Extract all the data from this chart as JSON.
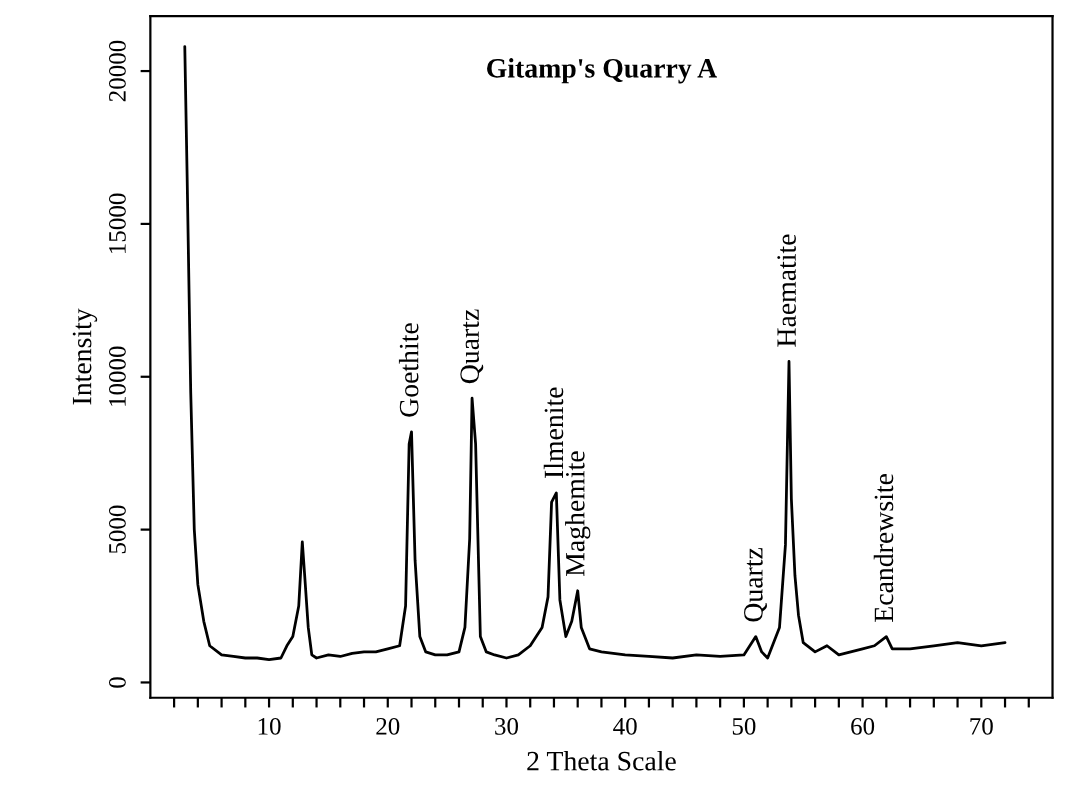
{
  "chart_data": {
    "type": "line",
    "title": "Gitamp's Quarry A",
    "xlabel": "2 Theta Scale",
    "ylabel": "Intensity",
    "x": [
      2.9,
      3.1,
      3.4,
      3.7,
      4.0,
      4.5,
      5.0,
      6,
      7,
      8,
      9,
      10,
      11,
      11.5,
      12,
      12.5,
      12.8,
      13.0,
      13.3,
      13.6,
      14,
      15,
      16,
      17,
      18,
      19,
      20,
      21,
      21.5,
      21.8,
      22.0,
      22.3,
      22.7,
      23.2,
      24,
      25,
      26,
      26.5,
      26.9,
      27.1,
      27.4,
      27.8,
      28.3,
      29,
      30,
      31,
      32,
      33,
      33.5,
      33.8,
      34.2,
      34.5,
      35,
      35.5,
      36,
      36.3,
      37,
      38,
      40,
      42,
      44,
      46,
      48,
      50,
      51,
      51.5,
      52,
      52.5,
      53,
      53.5,
      53.8,
      54.0,
      54.3,
      54.6,
      55,
      56,
      57,
      58,
      59,
      60,
      61,
      62,
      62.5,
      64,
      66,
      68,
      70,
      72
    ],
    "series": [
      {
        "color": "#000000",
        "values": [
          20800,
          16500,
          9500,
          5000,
          3200,
          2000,
          1200,
          900,
          850,
          800,
          800,
          750,
          800,
          1200,
          1500,
          2500,
          4600,
          3500,
          1800,
          900,
          800,
          900,
          850,
          950,
          1000,
          1000,
          1100,
          1200,
          2500,
          7800,
          8200,
          4000,
          1500,
          1000,
          900,
          900,
          1000,
          1800,
          4700,
          9300,
          7800,
          1500,
          1000,
          900,
          800,
          900,
          1200,
          1800,
          2800,
          5900,
          6200,
          2700,
          1500,
          2000,
          3000,
          1800,
          1100,
          1000,
          900,
          850,
          800,
          900,
          850,
          900,
          1500,
          1000,
          800,
          1300,
          1800,
          4500,
          10500,
          6000,
          3500,
          2200,
          1300,
          1000,
          1200,
          900,
          1000,
          1100,
          1200,
          1500,
          1100,
          1100,
          1200,
          1300,
          1200,
          1300
        ]
      }
    ],
    "xlim": [
      0,
      76
    ],
    "ylim": [
      -500,
      21800
    ],
    "xticks": [
      {
        "value": 2,
        "label": null
      },
      {
        "value": 4,
        "label": null
      },
      {
        "value": 6,
        "label": null
      },
      {
        "value": 8,
        "label": null
      },
      10,
      {
        "value": 12,
        "label": null
      },
      {
        "value": 14,
        "label": null
      },
      {
        "value": 16,
        "label": null
      },
      {
        "value": 18,
        "label": null
      },
      20,
      {
        "value": 22,
        "label": null
      },
      {
        "value": 24,
        "label": null
      },
      {
        "value": 26,
        "label": null
      },
      {
        "value": 28,
        "label": null
      },
      30,
      {
        "value": 32,
        "label": null
      },
      {
        "value": 34,
        "label": null
      },
      {
        "value": 36,
        "label": null
      },
      {
        "value": 38,
        "label": null
      },
      40,
      {
        "value": 42,
        "label": null
      },
      {
        "value": 44,
        "label": null
      },
      {
        "value": 46,
        "label": null
      },
      {
        "value": 48,
        "label": null
      },
      50,
      {
        "value": 52,
        "label": null
      },
      {
        "value": 54,
        "label": null
      },
      {
        "value": 56,
        "label": null
      },
      {
        "value": 58,
        "label": null
      },
      60,
      {
        "value": 62,
        "label": null
      },
      {
        "value": 64,
        "label": null
      },
      {
        "value": 66,
        "label": null
      },
      {
        "value": 68,
        "label": null
      },
      70,
      {
        "value": 72,
        "label": null
      },
      {
        "value": 74,
        "label": null
      }
    ],
    "yticks": [
      0,
      5000,
      10000,
      15000,
      20000
    ],
    "annotations": [
      {
        "text": "Goethite",
        "x": 22.0,
        "y": 8200
      },
      {
        "text": "Quartz",
        "x": 27.1,
        "y": 9300
      },
      {
        "text": "Ilmenite",
        "x": 34.2,
        "y": 6200
      },
      {
        "text": "Maghemite",
        "x": 36.0,
        "y": 3000
      },
      {
        "text": "Quartz",
        "x": 51,
        "y": 1500
      },
      {
        "text": "Haematite",
        "x": 53.8,
        "y": 10500
      },
      {
        "text": "Ecandrewsite",
        "x": 62,
        "y": 1500
      }
    ],
    "grid": false,
    "legend": false,
    "marker": "none",
    "line_style": "solid"
  }
}
